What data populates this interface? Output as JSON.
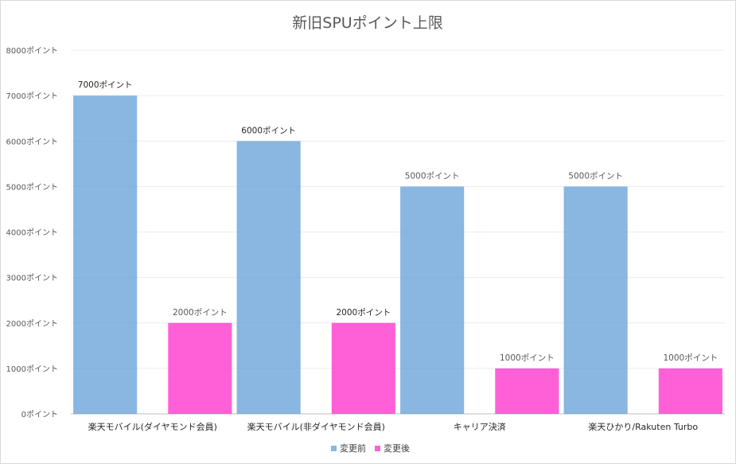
{
  "chart_data": {
    "type": "bar",
    "title": "新旧SPUポイント上限",
    "categories": [
      "楽天モバイル(ダイヤモンド会員)",
      "楽天モバイル(非ダイヤモンド会員)",
      "キャリア決済",
      "楽天ひかり/Rakuten Turbo"
    ],
    "series": [
      {
        "name": "変更前",
        "color": "#5b9bd5",
        "values": [
          7000,
          6000,
          5000,
          5000
        ],
        "labels": [
          "7000ポイント",
          "6000ポイント",
          "5000ポイント",
          "5000ポイント"
        ]
      },
      {
        "name": "変更後",
        "color": "#ff33cc",
        "values": [
          2000,
          2000,
          1000,
          1000
        ],
        "labels": [
          "2000ポイント",
          "2000ポイント",
          "1000ポイント",
          "1000ポイント"
        ]
      }
    ],
    "y_ticks": [
      "0ポイント",
      "1000ポイント",
      "2000ポイント",
      "3000ポイント",
      "4000ポイント",
      "5000ポイント",
      "6000ポイント",
      "7000ポイント",
      "8000ポイント"
    ],
    "ylim": [
      0,
      8000
    ],
    "grid": true,
    "legend_position": "bottom"
  }
}
